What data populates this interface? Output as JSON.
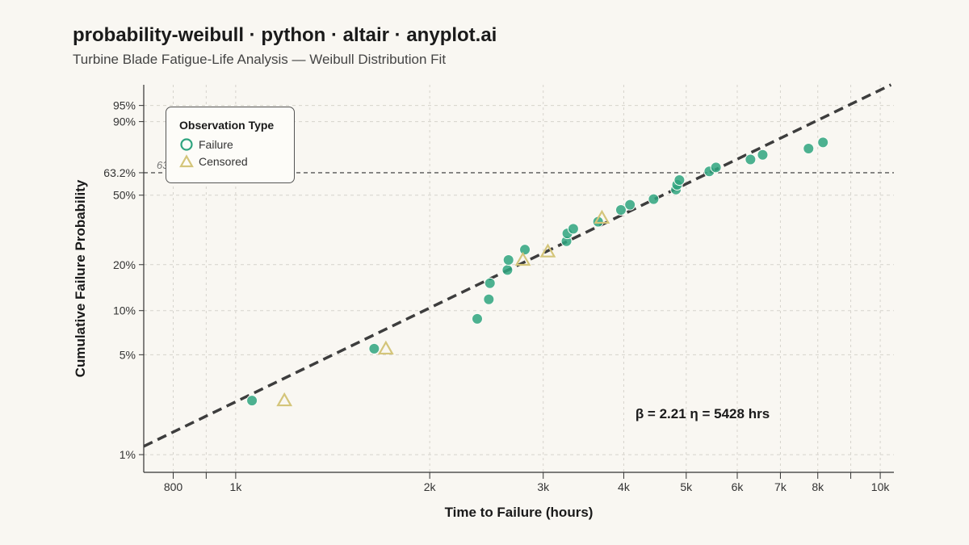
{
  "header": {
    "title": "probability-weibull · python · altair · anyplot.ai",
    "subtitle": "Turbine Blade Fatigue-Life Analysis — Weibull Distribution Fit"
  },
  "legend": {
    "title": "Observation Type",
    "items": [
      {
        "label": "Failure",
        "marker": "circle",
        "color": "#2fa47f"
      },
      {
        "label": "Censored",
        "marker": "triangle",
        "color": "#d4c57a"
      }
    ]
  },
  "colors": {
    "failure": "#2fa47f",
    "censored": "#d4c57a",
    "fit_line": "#3d3d3d",
    "grid": "#d6d3cc",
    "background": "#f9f7f2"
  },
  "chart_data": {
    "type": "scatter",
    "title": "probability-weibull · python · altair · anyplot.ai",
    "subtitle": "Turbine Blade Fatigue-Life Analysis — Weibull Distribution Fit",
    "xlabel": "Time to Failure (hours)",
    "ylabel": "Cumulative Failure Probability",
    "x_scale": "log",
    "y_scale": "weibull",
    "xlim": [
      720,
      10500
    ],
    "ylim": [
      0.0075,
      0.985
    ],
    "x_ticks": [
      {
        "value": 800,
        "label": "800"
      },
      {
        "value": 900,
        "label": ""
      },
      {
        "value": 1000,
        "label": "1k"
      },
      {
        "value": 2000,
        "label": "2k"
      },
      {
        "value": 3000,
        "label": "3k"
      },
      {
        "value": 4000,
        "label": "4k"
      },
      {
        "value": 5000,
        "label": "5k"
      },
      {
        "value": 6000,
        "label": "6k"
      },
      {
        "value": 7000,
        "label": "7k"
      },
      {
        "value": 8000,
        "label": "8k"
      },
      {
        "value": 9000,
        "label": ""
      },
      {
        "value": 10000,
        "label": "10k"
      }
    ],
    "y_ticks": [
      {
        "value": 0.01,
        "label": "1%"
      },
      {
        "value": 0.05,
        "label": "5%"
      },
      {
        "value": 0.1,
        "label": "10%"
      },
      {
        "value": 0.2,
        "label": "20%"
      },
      {
        "value": 0.5,
        "label": "50%"
      },
      {
        "value": 0.632,
        "label": "63.2%"
      },
      {
        "value": 0.9,
        "label": "90%"
      },
      {
        "value": 0.95,
        "label": "95%"
      }
    ],
    "grid": true,
    "legend_position": "top-left",
    "reference_line": {
      "value": 0.632,
      "label": "63.2%"
    },
    "fit": {
      "beta": 2.21,
      "eta": 5428,
      "label": "β = 2.21 η = 5428 hrs"
    },
    "series": [
      {
        "name": "Failure",
        "marker": "circle",
        "points": [
          {
            "x": 1060,
            "y": 0.024
          },
          {
            "x": 1640,
            "y": 0.055
          },
          {
            "x": 2370,
            "y": 0.088
          },
          {
            "x": 2470,
            "y": 0.119
          },
          {
            "x": 2480,
            "y": 0.152
          },
          {
            "x": 2640,
            "y": 0.185
          },
          {
            "x": 2650,
            "y": 0.214
          },
          {
            "x": 2810,
            "y": 0.248
          },
          {
            "x": 3260,
            "y": 0.279
          },
          {
            "x": 3270,
            "y": 0.31
          },
          {
            "x": 3340,
            "y": 0.33
          },
          {
            "x": 3650,
            "y": 0.362
          },
          {
            "x": 3960,
            "y": 0.42
          },
          {
            "x": 4090,
            "y": 0.447
          },
          {
            "x": 4450,
            "y": 0.478
          },
          {
            "x": 4820,
            "y": 0.532
          },
          {
            "x": 4840,
            "y": 0.56
          },
          {
            "x": 4880,
            "y": 0.588
          },
          {
            "x": 5430,
            "y": 0.64
          },
          {
            "x": 5560,
            "y": 0.664
          },
          {
            "x": 6290,
            "y": 0.711
          },
          {
            "x": 6570,
            "y": 0.738
          },
          {
            "x": 7740,
            "y": 0.773
          },
          {
            "x": 8150,
            "y": 0.806
          }
        ]
      },
      {
        "name": "Censored",
        "marker": "triangle",
        "points": [
          {
            "x": 1190,
            "y": 0.024
          },
          {
            "x": 1710,
            "y": 0.055
          },
          {
            "x": 2790,
            "y": 0.214
          },
          {
            "x": 3050,
            "y": 0.241
          },
          {
            "x": 3700,
            "y": 0.38
          }
        ]
      }
    ]
  }
}
